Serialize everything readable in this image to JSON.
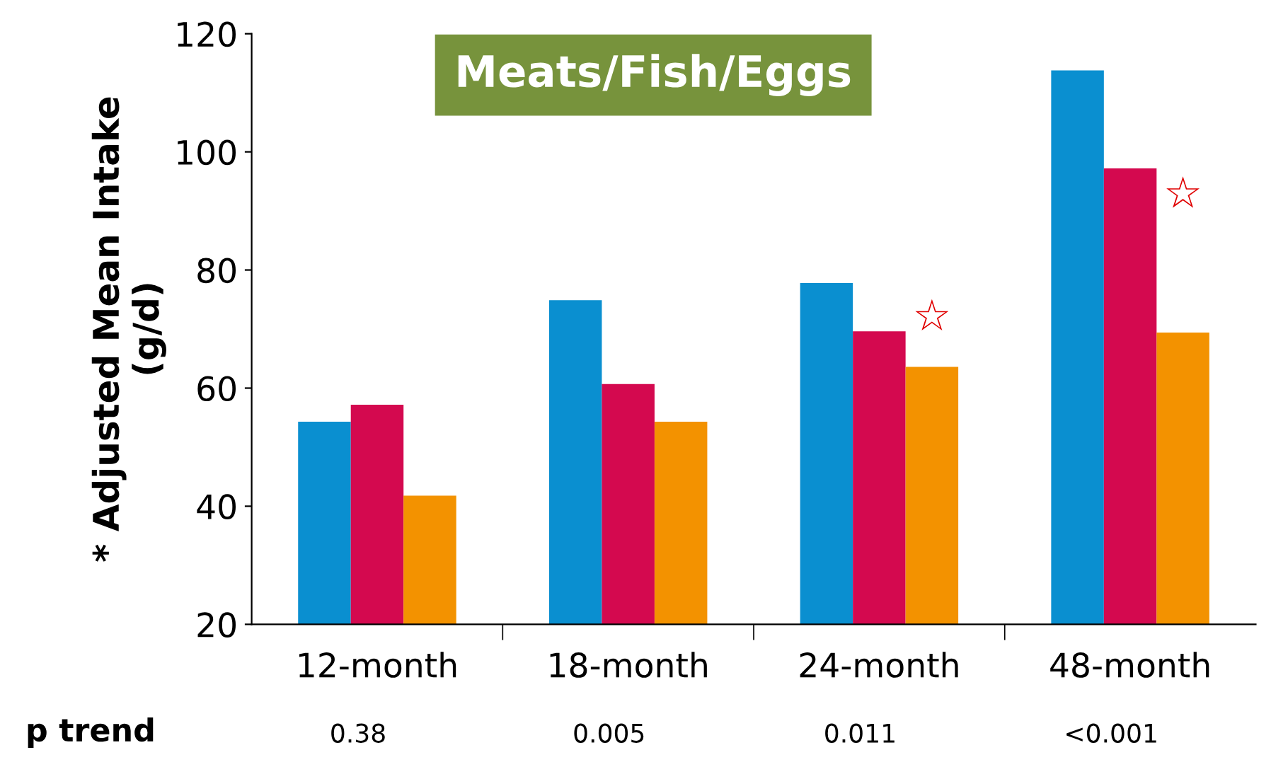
{
  "chart_data": {
    "type": "bar",
    "title": "Meats/Fish/Eggs",
    "ylabel": "* Adjusted Mean Intake\n(g/d)",
    "categories": [
      "12-month",
      "18-month",
      "24-month",
      "48-month"
    ],
    "series": [
      {
        "color": "#0a8fd0",
        "values": [
          54.3,
          74.9,
          77.8,
          113.8
        ]
      },
      {
        "color": "#d4094f",
        "values": [
          57.2,
          60.7,
          69.6,
          97.2
        ]
      },
      {
        "color": "#f39200",
        "values": [
          41.8,
          54.3,
          63.6,
          69.4
        ]
      }
    ],
    "ylim": [
      20,
      120
    ],
    "yticks": [
      20,
      40,
      60,
      80,
      100,
      120
    ],
    "grid": false,
    "legend": false,
    "annotations": [
      "☆",
      "☆",
      "p trend",
      "0.38",
      "0.005",
      "0.011",
      "<0.001"
    ]
  }
}
